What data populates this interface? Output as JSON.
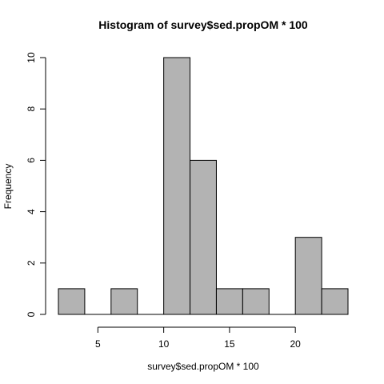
{
  "chart_data": {
    "type": "bar",
    "title": "Histogram of survey$sed.propOM * 100",
    "xlabel": "survey$sed.propOM * 100",
    "ylabel": "Frequency",
    "bins": [
      {
        "from": 2,
        "to": 4,
        "count": 1
      },
      {
        "from": 4,
        "to": 6,
        "count": 0
      },
      {
        "from": 6,
        "to": 8,
        "count": 1
      },
      {
        "from": 8,
        "to": 10,
        "count": 0
      },
      {
        "from": 10,
        "to": 12,
        "count": 10
      },
      {
        "from": 12,
        "to": 14,
        "count": 6
      },
      {
        "from": 14,
        "to": 16,
        "count": 1
      },
      {
        "from": 16,
        "to": 18,
        "count": 1
      },
      {
        "from": 18,
        "to": 20,
        "count": 0
      },
      {
        "from": 20,
        "to": 22,
        "count": 3
      },
      {
        "from": 22,
        "to": 24,
        "count": 1
      }
    ],
    "xlim": [
      2,
      24
    ],
    "ylim": [
      0,
      10
    ],
    "xticks": [
      5,
      10,
      15,
      20
    ],
    "yticks": [
      0,
      2,
      4,
      6,
      8,
      10
    ],
    "bar_color": "#b3b3b3",
    "border_color": "#000000",
    "grid": false
  }
}
